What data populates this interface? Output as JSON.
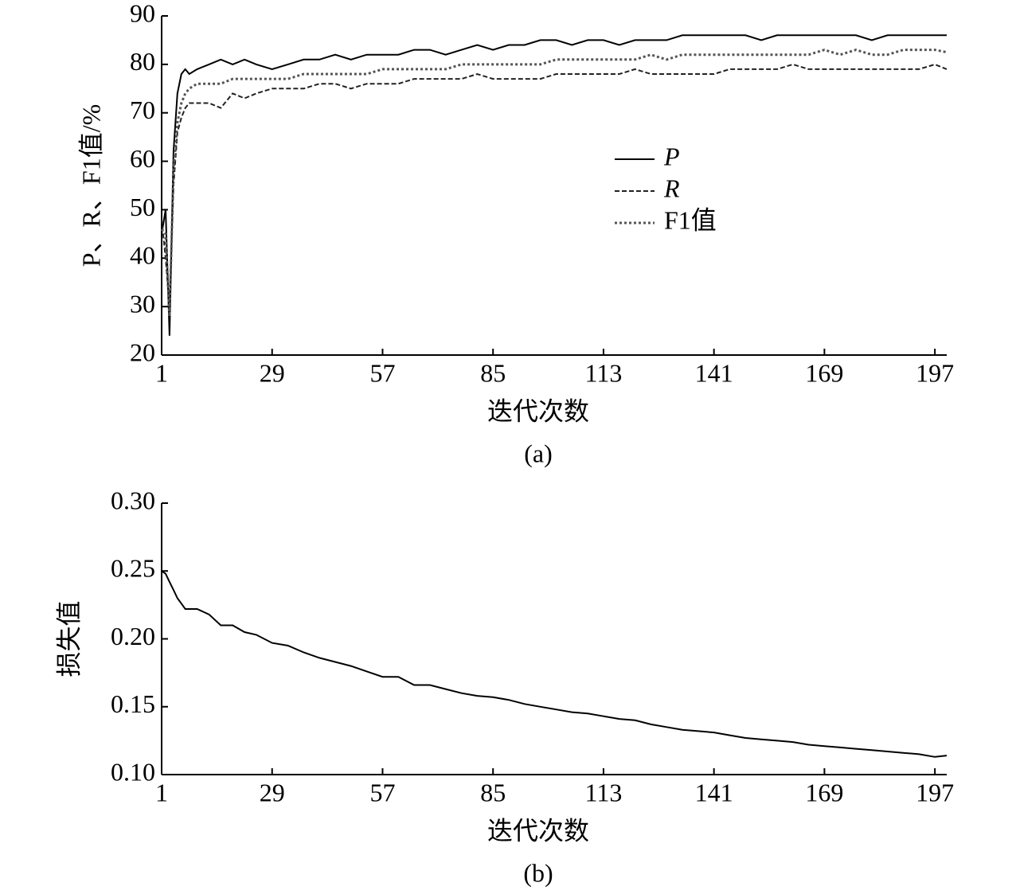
{
  "chart_data": [
    {
      "type": "line",
      "caption": "(a)",
      "xlabel": "迭代次数",
      "ylabel": "P、R、F1值/%",
      "x": [
        1,
        2,
        3,
        4,
        5,
        6,
        7,
        8,
        10,
        13,
        16,
        19,
        22,
        25,
        29,
        33,
        37,
        41,
        45,
        49,
        53,
        57,
        61,
        65,
        69,
        73,
        77,
        81,
        85,
        89,
        93,
        97,
        101,
        105,
        109,
        113,
        117,
        121,
        125,
        129,
        133,
        137,
        141,
        145,
        149,
        153,
        157,
        161,
        165,
        169,
        173,
        177,
        181,
        185,
        189,
        193,
        197,
        200
      ],
      "xlim": [
        1,
        200
      ],
      "xticks": [
        1,
        29,
        57,
        85,
        113,
        141,
        169,
        197
      ],
      "ylim": [
        20,
        90
      ],
      "yticks": [
        20,
        30,
        40,
        50,
        60,
        70,
        80,
        90
      ],
      "legend": "center right",
      "series": [
        {
          "name": "P",
          "color": "#000000",
          "style": "solid",
          "values": [
            45,
            50,
            24,
            62,
            74,
            78,
            79,
            78,
            79,
            80,
            81,
            80,
            81,
            80,
            79,
            80,
            81,
            81,
            82,
            81,
            82,
            82,
            82,
            83,
            83,
            82,
            83,
            84,
            83,
            84,
            84,
            85,
            85,
            84,
            85,
            85,
            84,
            85,
            85,
            85,
            86,
            86,
            86,
            86,
            86,
            85,
            86,
            86,
            86,
            86,
            86,
            86,
            85,
            86,
            86,
            86,
            86,
            86
          ]
        },
        {
          "name": "R",
          "color": "#222222",
          "style": "dashed",
          "values": [
            48,
            40,
            30,
            55,
            66,
            69,
            71,
            72,
            72,
            72,
            71,
            74,
            73,
            74,
            75,
            75,
            75,
            76,
            76,
            75,
            76,
            76,
            76,
            77,
            77,
            77,
            77,
            78,
            77,
            77,
            77,
            77,
            78,
            78,
            78,
            78,
            78,
            79,
            78,
            78,
            78,
            78,
            78,
            79,
            79,
            79,
            79,
            80,
            79,
            79,
            79,
            79,
            79,
            79,
            79,
            79,
            80,
            79
          ]
        },
        {
          "name": "F1值",
          "color": "#555555",
          "style": "dotted",
          "values": [
            46,
            45,
            28,
            58,
            68,
            72,
            74,
            75,
            76,
            76,
            76,
            77,
            77,
            77,
            77,
            77,
            78,
            78,
            78,
            78,
            78,
            79,
            79,
            79,
            79,
            79,
            80,
            80,
            80,
            80,
            80,
            80,
            81,
            81,
            81,
            81,
            81,
            81,
            82,
            81,
            82,
            82,
            82,
            82,
            82,
            82,
            82,
            82,
            82,
            83,
            82,
            83,
            82,
            82,
            83,
            83,
            83,
            82.5
          ]
        }
      ]
    },
    {
      "type": "line",
      "caption": "(b)",
      "xlabel": "迭代次数",
      "ylabel": "损失值",
      "x": [
        1,
        2,
        3,
        4,
        5,
        6,
        7,
        8,
        10,
        13,
        16,
        19,
        22,
        25,
        29,
        33,
        37,
        41,
        45,
        49,
        53,
        57,
        61,
        65,
        69,
        73,
        77,
        81,
        85,
        89,
        93,
        97,
        101,
        105,
        109,
        113,
        117,
        121,
        125,
        129,
        133,
        137,
        141,
        145,
        149,
        153,
        157,
        161,
        165,
        169,
        173,
        177,
        181,
        185,
        189,
        193,
        197,
        200
      ],
      "xlim": [
        1,
        200
      ],
      "xticks": [
        1,
        29,
        57,
        85,
        113,
        141,
        169,
        197
      ],
      "ylim": [
        0.1,
        0.3
      ],
      "yticks": [
        {
          "value": 0.1,
          "label": "0.10"
        },
        0.15,
        {
          "value": 0.2,
          "label": "0.20"
        },
        0.25,
        {
          "value": 0.3,
          "label": "0.30"
        }
      ],
      "color": "#000000",
      "values": [
        0.25,
        0.248,
        0.242,
        0.236,
        0.23,
        0.226,
        0.222,
        0.222,
        0.222,
        0.218,
        0.21,
        0.21,
        0.205,
        0.203,
        0.197,
        0.195,
        0.19,
        0.186,
        0.183,
        0.18,
        0.176,
        0.172,
        0.172,
        0.166,
        0.166,
        0.163,
        0.16,
        0.158,
        0.157,
        0.155,
        0.152,
        0.15,
        0.148,
        0.146,
        0.145,
        0.143,
        0.141,
        0.14,
        0.137,
        0.135,
        0.133,
        0.132,
        0.131,
        0.129,
        0.127,
        0.126,
        0.125,
        0.124,
        0.122,
        0.121,
        0.12,
        0.119,
        0.118,
        0.117,
        0.116,
        0.115,
        0.113,
        0.114
      ]
    }
  ]
}
